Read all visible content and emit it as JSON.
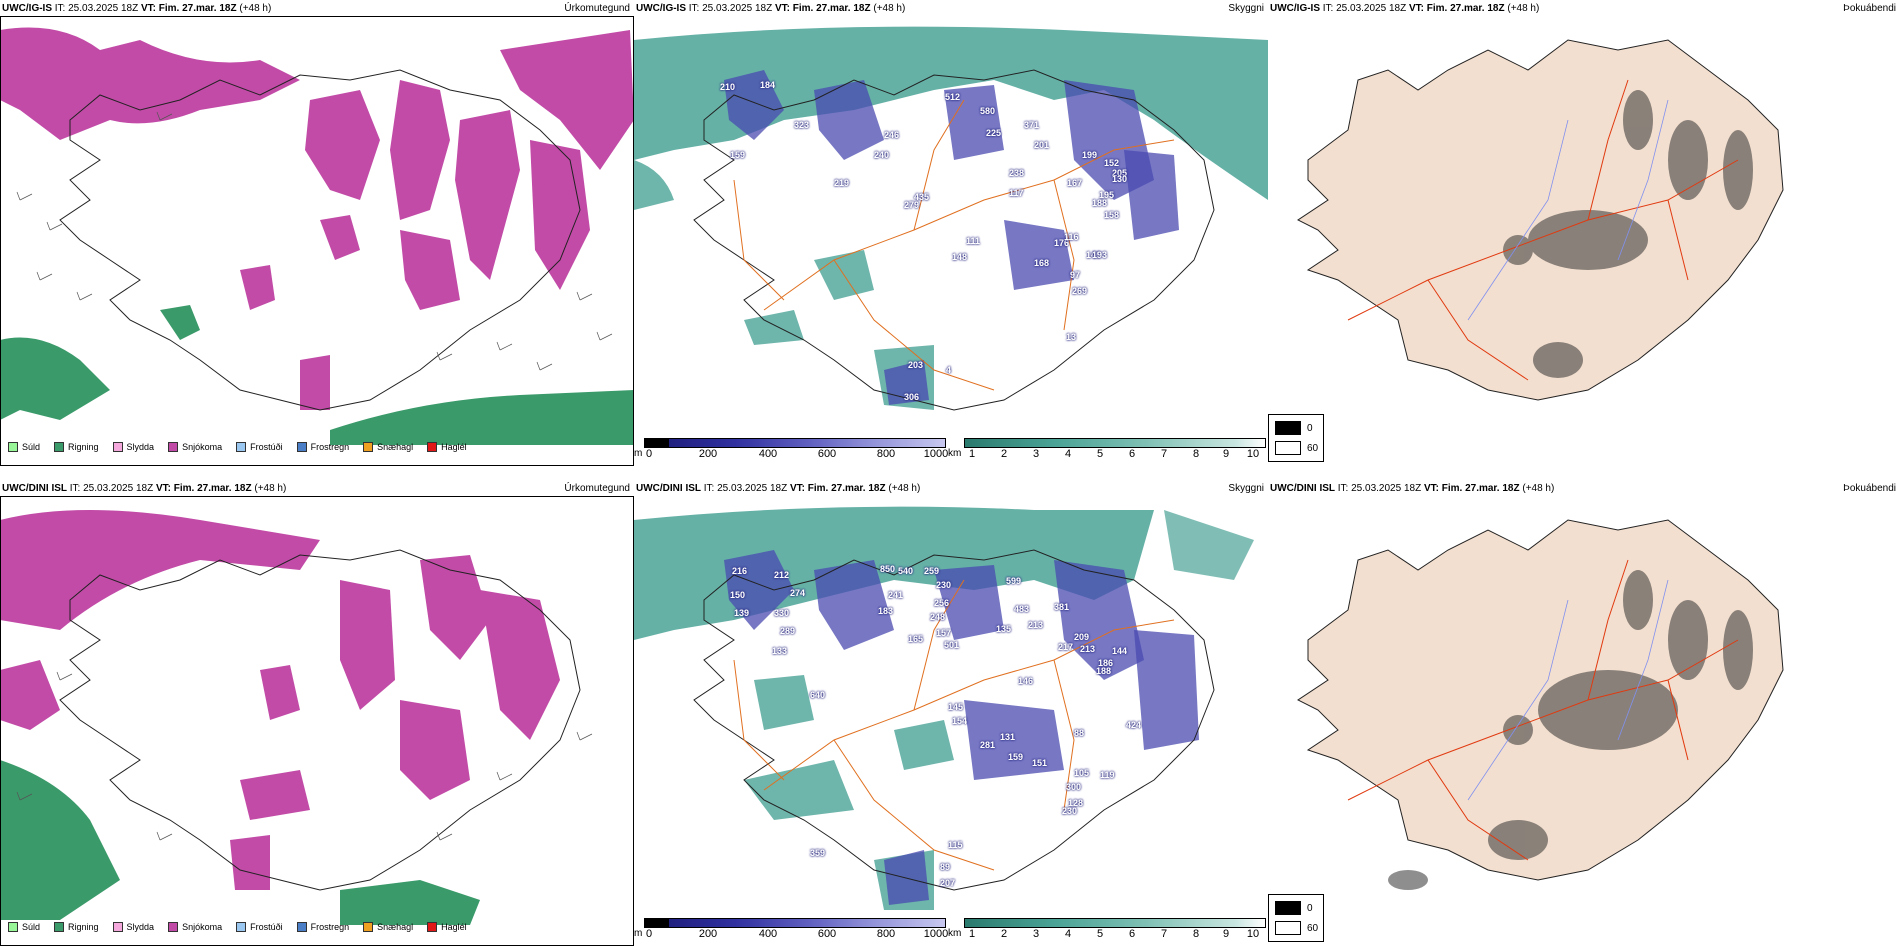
{
  "rows": [
    {
      "model": "UWC/IG-IS",
      "it_label": "IT: 25.03.2025 18Z",
      "vt_label": "VT: Fim. 27.mar. 18Z",
      "lead": "(+48 h)",
      "precip_label": "Úrkomutegund",
      "cloud_label": "Skyggni",
      "fog_label": "Þokuábendi",
      "values": [
        "210",
        "184",
        "323",
        "159",
        "219",
        "240",
        "246",
        "279",
        "435",
        "512",
        "580",
        "225",
        "371",
        "201",
        "238",
        "117",
        "167",
        "199",
        "176",
        "195",
        "205",
        "188",
        "158",
        "140",
        "97",
        "168",
        "116",
        "193",
        "269",
        "152",
        "130",
        "148",
        "111",
        "203",
        "306",
        "13",
        "4"
      ]
    },
    {
      "model": "UWC/DINI ISL",
      "it_label": "IT: 25.03.2025 18Z",
      "vt_label": "VT: Fim. 27.mar. 18Z",
      "lead": "(+48 h)",
      "precip_label": "Úrkomutegund",
      "cloud_label": "Skyggni",
      "fog_label": "Þokuábendi",
      "values": [
        "216",
        "212",
        "274",
        "150",
        "139",
        "330",
        "289",
        "133",
        "850",
        "540",
        "259",
        "230",
        "241",
        "256",
        "248",
        "599",
        "183",
        "157",
        "501",
        "165",
        "135",
        "483",
        "213",
        "381",
        "217",
        "213",
        "146",
        "209",
        "186",
        "188",
        "144",
        "640",
        "145",
        "154",
        "131",
        "281",
        "159",
        "151",
        "105",
        "300",
        "128",
        "424",
        "88",
        "119",
        "230",
        "115",
        "89",
        "207",
        "359"
      ]
    }
  ],
  "precip_legend": [
    {
      "label": "Súld",
      "color": "#98f598"
    },
    {
      "label": "Rigning",
      "color": "#3a9a6a"
    },
    {
      "label": "Slydda",
      "color": "#f5a8dc"
    },
    {
      "label": "Snjókoma",
      "color": "#c04aa5"
    },
    {
      "label": "Frostúði",
      "color": "#9ac8f0"
    },
    {
      "label": "Frostregn",
      "color": "#4a7fc8"
    },
    {
      "label": "Snæhagl",
      "color": "#f0a020"
    },
    {
      "label": "Haglél",
      "color": "#e01818"
    }
  ],
  "ceiling_bar": {
    "unit": "m",
    "ticks": [
      "0",
      "200",
      "400",
      "600",
      "800",
      "1000"
    ]
  },
  "visibility_bar": {
    "unit": "km",
    "ticks": [
      "1",
      "2",
      "3",
      "4",
      "5",
      "6",
      "7",
      "8",
      "9",
      "10"
    ]
  },
  "fog_legend": {
    "dark": "0",
    "light": "60"
  },
  "colors": {
    "snow": "#c24ba7",
    "rain": "#3a9a6a",
    "cloud_teal": "#4aa396",
    "road": "#e07020",
    "fog_land": "#f3dfcf",
    "river": "#8090f0"
  }
}
